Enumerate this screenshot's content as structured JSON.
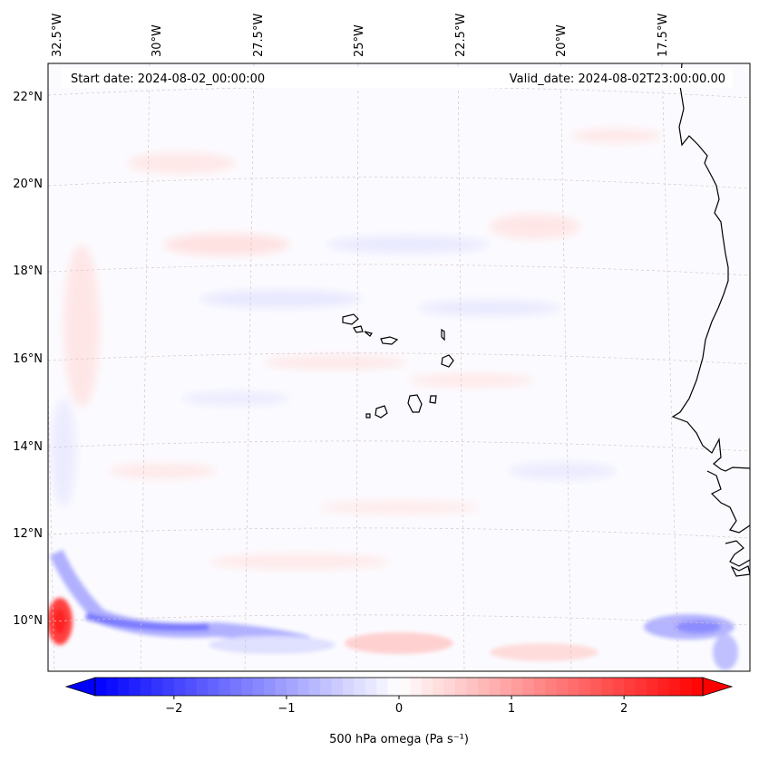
{
  "map": {
    "start_label": "Start date: 2024-08-02_00:00:00",
    "valid_label": "Valid_date: 2024-08-02T23:00:00.00",
    "lon_labels": [
      "32.5°W",
      "30°W",
      "27.5°W",
      "25°W",
      "22.5°W",
      "20°W",
      "17.5°W"
    ],
    "lat_labels": [
      "22°N",
      "20°N",
      "18°N",
      "16°N",
      "14°N",
      "12°N",
      "10°N"
    ],
    "field_colors": {
      "positive": "#ff0000",
      "negative": "#0000ff",
      "neutral": "#ffffff"
    },
    "coastline_color": "#000000",
    "gridline_color": "#c8a0a0"
  },
  "colorbar": {
    "label": "500 hPa omega (Pa s⁻¹)",
    "ticks": [
      "−2",
      "−1",
      "0",
      "1",
      "2"
    ],
    "tick_values": [
      -2,
      -1,
      0,
      1,
      2
    ],
    "range": [
      -2.7,
      2.7
    ],
    "low_color": "#0000ff",
    "mid_color": "#ffffff",
    "high_color": "#ff0000"
  }
}
